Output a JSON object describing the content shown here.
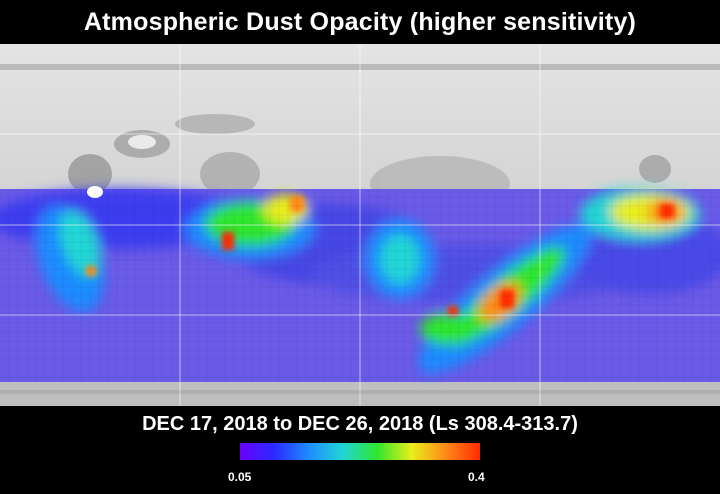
{
  "title": "Atmospheric Dust Opacity (higher sensitivity)",
  "date_range": "DEC 17, 2018 to DEC 26, 2018 (Ls 308.4-313.7)",
  "colorbar": {
    "min_label": "0.05",
    "max_label": "0.4",
    "min_value": 0.05,
    "max_value": 0.4,
    "colors": [
      "#6a00ff",
      "#2a2aff",
      "#1e8bff",
      "#21d6d6",
      "#2ee62e",
      "#e8ee1a",
      "#ff8a18",
      "#ff2a00"
    ]
  },
  "overlay_color": "#6a5ae8",
  "terrain_color": "#c8c8c8"
}
